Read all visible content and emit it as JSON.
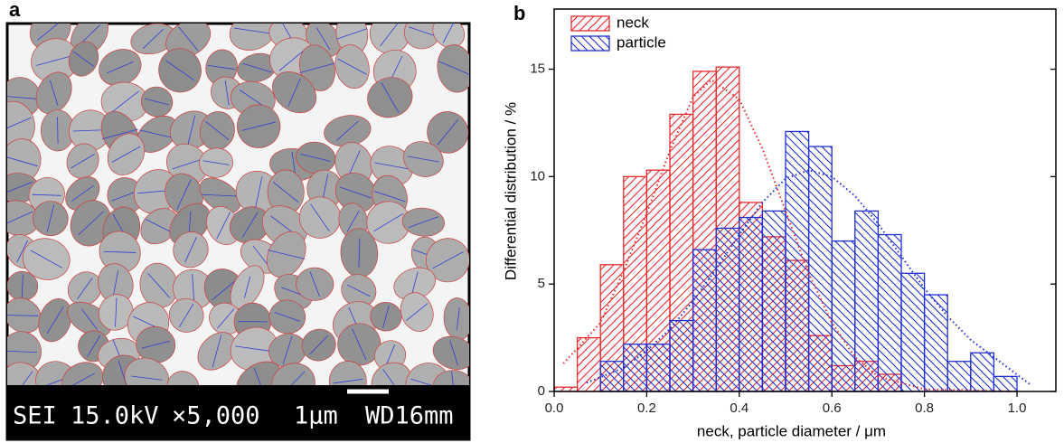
{
  "panel_a": {
    "label": "a",
    "caption": [
      "SEI",
      "15.0kV",
      "×5,000",
      "1μm",
      "WD16mm"
    ]
  },
  "chart_data": {
    "type": "histogram",
    "label": "b",
    "xlabel": "neck, particle diameter / μm",
    "ylabel": "Differential distribution / %",
    "xlim": [
      0,
      1.084
    ],
    "ylim": [
      0,
      17.8
    ],
    "xticks": [
      {
        "value": 0,
        "label": "0.0"
      },
      {
        "value": 0.2,
        "label": "0.2"
      },
      {
        "value": 0.4,
        "label": "0.4"
      },
      {
        "value": 0.6,
        "label": "0.6"
      },
      {
        "value": 0.8,
        "label": "0.8"
      },
      {
        "value": 1,
        "label": "1.0"
      }
    ],
    "yticks": [
      0,
      5,
      10,
      15
    ],
    "legend": "upper left",
    "series": [
      {
        "name": "neck",
        "color": "#e8282b",
        "hatch": "/",
        "bins": [
          0,
          0.05,
          0.1,
          0.15,
          0.2,
          0.25,
          0.3,
          0.35,
          0.4,
          0.45,
          0.5,
          0.55,
          0.6,
          0.65,
          0.7,
          0.75
        ],
        "values": [
          0.2,
          2.5,
          5.9,
          10.0,
          10.3,
          12.9,
          14.9,
          15.1,
          8.8,
          7.2,
          6.1,
          2.6,
          1.2,
          1.4,
          0.8
        ],
        "fit": {
          "x": [
            0.02,
            0.1,
            0.15,
            0.2,
            0.25,
            0.3,
            0.34,
            0.4,
            0.45,
            0.5,
            0.55,
            0.6,
            0.65,
            0.7,
            0.8,
            1.0
          ],
          "y": [
            1.3,
            3.2,
            5.6,
            8.3,
            11.2,
            13.7,
            14.5,
            13.6,
            11.3,
            8.4,
            5.5,
            3.2,
            1.6,
            0.7,
            0.1,
            0
          ]
        }
      },
      {
        "name": "particle",
        "color": "#1f2fd6",
        "hatch": "\\",
        "bins": [
          0.1,
          0.15,
          0.2,
          0.25,
          0.3,
          0.35,
          0.4,
          0.45,
          0.5,
          0.55,
          0.6,
          0.65,
          0.7,
          0.75,
          0.8,
          0.85,
          0.9,
          0.95,
          1.0
        ],
        "values": [
          1.4,
          2.2,
          2.2,
          3.3,
          6.6,
          7.6,
          8.1,
          8.4,
          12.1,
          11.4,
          7.0,
          8.4,
          7.3,
          5.5,
          4.5,
          1.4,
          1.8,
          0.7
        ],
        "fit": {
          "x": [
            0.07,
            0.15,
            0.2,
            0.25,
            0.3,
            0.35,
            0.4,
            0.45,
            0.5,
            0.55,
            0.6,
            0.65,
            0.7,
            0.75,
            0.8,
            0.85,
            0.9,
            0.95,
            1.03
          ],
          "y": [
            0.4,
            1.1,
            1.9,
            2.9,
            4.2,
            5.7,
            7.3,
            8.8,
            9.9,
            10.3,
            10.0,
            9.1,
            7.8,
            6.3,
            4.8,
            3.5,
            2.4,
            1.6,
            0.3
          ]
        }
      }
    ]
  }
}
